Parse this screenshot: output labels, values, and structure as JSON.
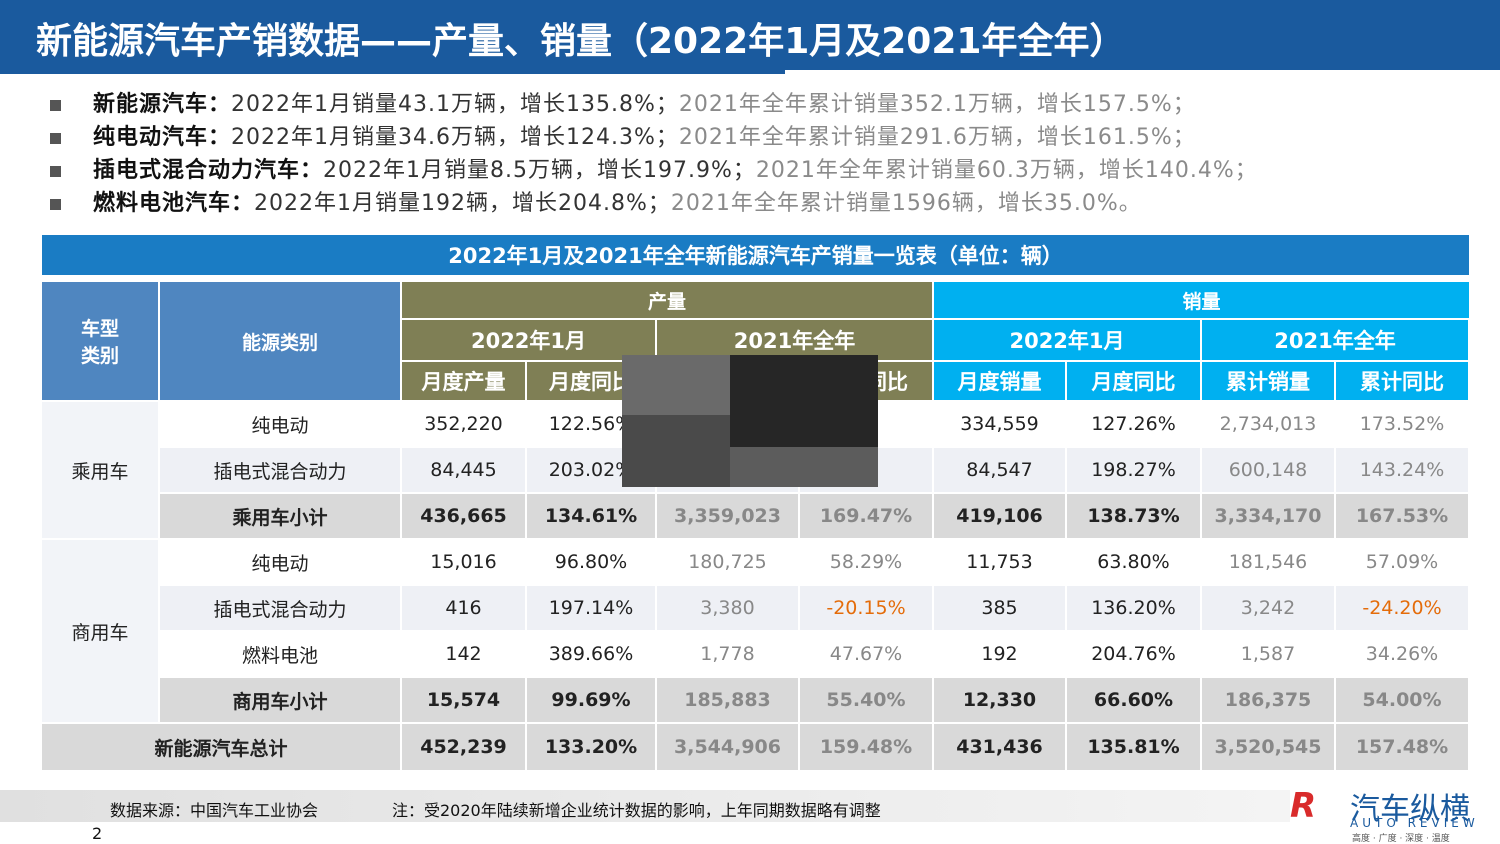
{
  "header": {
    "title": "新能源汽车产销数据——产量、销量（2022年1月及2021年全年）"
  },
  "bullets": [
    {
      "label": "新能源汽车：",
      "current": "2022年1月销量43.1万辆，增长135.8%；",
      "previous": "2021年全年累计销量352.1万辆，增长157.5%；"
    },
    {
      "label": "纯电动汽车：",
      "current": "2022年1月销量34.6万辆，增长124.3%；",
      "previous": "2021年全年累计销量291.6万辆，增长161.5%；"
    },
    {
      "label": "插电式混合动力汽车：",
      "current": "2022年1月销量8.5万辆，增长197.9%；",
      "previous": "2021年全年累计销量60.3万辆，增长140.4%；"
    },
    {
      "label": "燃料电池汽车：",
      "current": "2022年1月销量192辆，增长204.8%；",
      "previous": "2021年全年累计销量1596辆，增长35.0%。"
    }
  ],
  "table": {
    "title": "2022年1月及2021年全年新能源汽车产销量一览表（单位：辆）",
    "col_type": "车型类别",
    "col_energy": "能源类别",
    "production": "产量",
    "sales": "销量",
    "periods": [
      "2022年1月",
      "2021年全年",
      "2022年1月",
      "2021年全年"
    ],
    "subheaders": [
      "月度产量",
      "月度同比",
      null,
      "累计同比",
      "月度销量",
      "月度同比",
      "累计销量",
      "累计同比"
    ],
    "groups": [
      {
        "label": "乘用车",
        "rows": [
          {
            "name": "纯电动",
            "cells": [
              "352,220",
              "122.56%",
              null,
              null,
              "334,559",
              "127.26%",
              "2,734,013",
              "173.52%"
            ]
          },
          {
            "name": "插电式混合动力",
            "cells": [
              "84,445",
              "203.02%",
              null,
              null,
              "84,547",
              "198.27%",
              "600,148",
              "143.24%"
            ]
          },
          {
            "name": "乘用车小计",
            "subtotal": true,
            "cells": [
              "436,665",
              "134.61%",
              "3,359,023",
              "169.47%",
              "419,106",
              "138.73%",
              "3,334,170",
              "167.53%"
            ]
          }
        ]
      },
      {
        "label": "商用车",
        "rows": [
          {
            "name": "纯电动",
            "cells": [
              "15,016",
              "96.80%",
              "180,725",
              "58.29%",
              "11,753",
              "63.80%",
              "181,546",
              "57.09%"
            ]
          },
          {
            "name": "插电式混合动力",
            "cells": [
              "416",
              "197.14%",
              "3,380",
              "-20.15%",
              "385",
              "136.20%",
              "3,242",
              "-24.20%"
            ]
          },
          {
            "name": "燃料电池",
            "cells": [
              "142",
              "389.66%",
              "1,778",
              "47.67%",
              "192",
              "204.76%",
              "1,587",
              "34.26%"
            ]
          },
          {
            "name": "商用车小计",
            "subtotal": true,
            "cells": [
              "15,574",
              "99.69%",
              "185,883",
              "55.40%",
              "12,330",
              "66.60%",
              "186,375",
              "54.00%"
            ]
          }
        ]
      }
    ],
    "total": {
      "name": "新能源汽车总计",
      "cells": [
        "452,239",
        "133.20%",
        "3,544,906",
        "159.48%",
        "431,436",
        "135.81%",
        "3,520,545",
        "157.48%"
      ]
    }
  },
  "footer": {
    "source": "数据来源：中国汽车工业协会",
    "note": "注：受2020年陆续新增企业统计数据的影响，上年同期数据略有调整",
    "page": "2",
    "logo": "汽车纵横",
    "logo_en": "AUTO REVIEW",
    "logo_tagline": "高度 · 广度 · 深度 · 温度"
  }
}
